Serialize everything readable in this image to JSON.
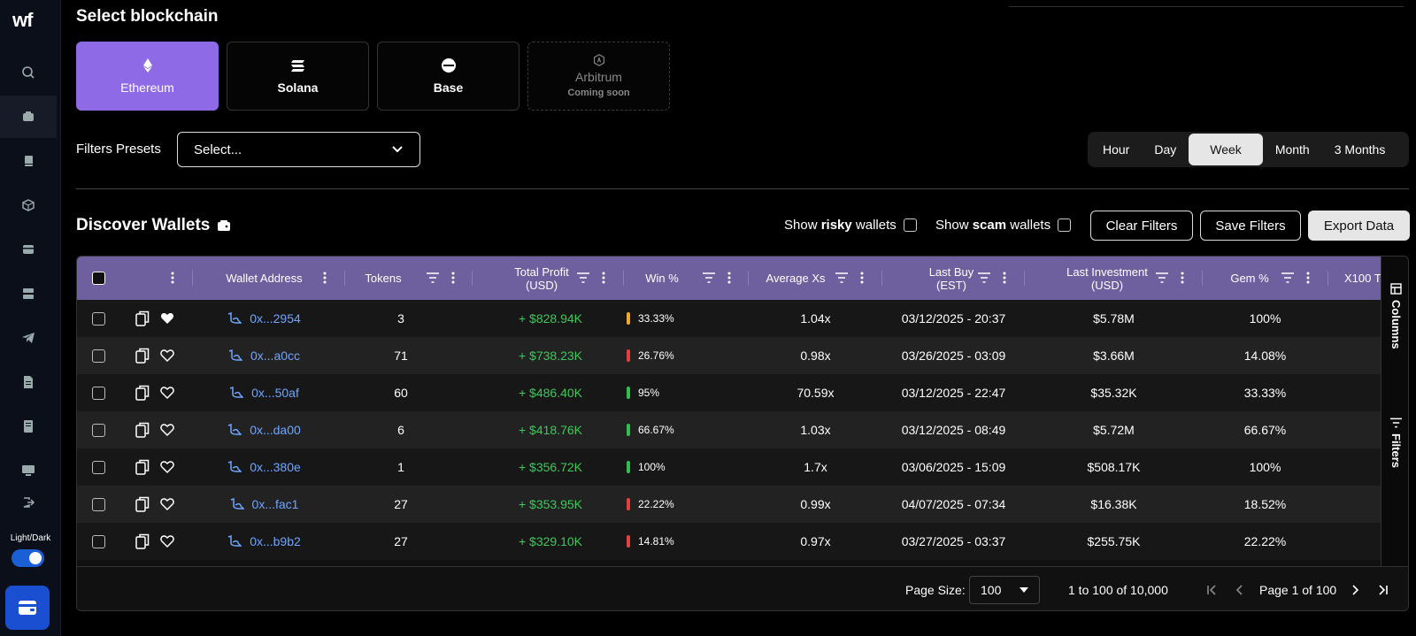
{
  "app": {
    "logo": "wf"
  },
  "sidebar": {
    "items": [
      {
        "icon": "search-icon"
      },
      {
        "icon": "wallet-icon",
        "active": true
      },
      {
        "icon": "book-icon"
      },
      {
        "icon": "cube-icon"
      },
      {
        "icon": "card-icon"
      },
      {
        "icon": "server-icon"
      },
      {
        "icon": "telegram-icon"
      },
      {
        "icon": "document-icon"
      },
      {
        "icon": "receipt-icon"
      },
      {
        "icon": "monitor-icon"
      },
      {
        "icon": "logout-icon"
      }
    ],
    "theme_label": "Light/Dark"
  },
  "blockchain": {
    "title": "Select blockchain",
    "options": [
      {
        "label": "Ethereum",
        "icon": "ethereum-icon",
        "selected": true
      },
      {
        "label": "Solana",
        "icon": "solana-icon"
      },
      {
        "label": "Base",
        "icon": "base-icon"
      },
      {
        "label": "Arbitrum",
        "icon": "arbitrum-icon",
        "sub": "Coming soon",
        "disabled": true
      }
    ]
  },
  "filters": {
    "label": "Filters Presets",
    "placeholder": "Select..."
  },
  "time_range": {
    "tabs": [
      "Hour",
      "Day",
      "Week",
      "Month",
      "3 Months"
    ],
    "active": "Week"
  },
  "discover": {
    "title": "Discover Wallets",
    "risky": {
      "pre": "Show ",
      "bold": "risky",
      "post": " wallets"
    },
    "scam": {
      "pre": "Show ",
      "bold": "scam",
      "post": " wallets"
    },
    "clear": "Clear Filters",
    "save": "Save Filters",
    "export": "Export Data"
  },
  "table": {
    "headers": {
      "wallet": "Wallet Address",
      "tokens": "Tokens",
      "profit_1": "Total Profit",
      "profit_2": "(USD)",
      "win": "Win %",
      "avg": "Average Xs",
      "last_buy_1": "Last Buy",
      "last_buy_2": "(EST)",
      "last_inv_1": "Last Investment",
      "last_inv_2": "(USD)",
      "gem": "Gem %",
      "x100": "X100 T"
    },
    "rows": [
      {
        "addr": "0x...2954",
        "tokens": "3",
        "profit": "+ $828.94K",
        "win": "33.33%",
        "win_color": "#f5a623",
        "avg": "1.04x",
        "last_buy": "03/12/2025 - 20:37",
        "last_inv": "$5.78M",
        "gem": "100%",
        "fav": true
      },
      {
        "addr": "0x...a0cc",
        "tokens": "71",
        "profit": "+ $738.23K",
        "win": "26.76%",
        "win_color": "#e5403a",
        "avg": "0.98x",
        "last_buy": "03/26/2025 - 03:09",
        "last_inv": "$3.66M",
        "gem": "14.08%",
        "fav": false
      },
      {
        "addr": "0x...50af",
        "tokens": "60",
        "profit": "+ $486.40K",
        "win": "95%",
        "win_color": "#2fbf4a",
        "avg": "70.59x",
        "last_buy": "03/12/2025 - 22:47",
        "last_inv": "$35.32K",
        "gem": "33.33%",
        "fav": false
      },
      {
        "addr": "0x...da00",
        "tokens": "6",
        "profit": "+ $418.76K",
        "win": "66.67%",
        "win_color": "#2fbf4a",
        "avg": "1.03x",
        "last_buy": "03/12/2025 - 08:49",
        "last_inv": "$5.72M",
        "gem": "66.67%",
        "fav": false
      },
      {
        "addr": "0x...380e",
        "tokens": "1",
        "profit": "+ $356.72K",
        "win": "100%",
        "win_color": "#2fbf4a",
        "avg": "1.7x",
        "last_buy": "03/06/2025 - 15:09",
        "last_inv": "$508.17K",
        "gem": "100%",
        "fav": false
      },
      {
        "addr": "0x...fac1",
        "tokens": "27",
        "profit": "+ $353.95K",
        "win": "22.22%",
        "win_color": "#e5403a",
        "avg": "0.99x",
        "last_buy": "04/07/2025 - 07:34",
        "last_inv": "$16.38K",
        "gem": "18.52%",
        "fav": false
      },
      {
        "addr": "0x...b9b2",
        "tokens": "27",
        "profit": "+ $329.10K",
        "win": "14.81%",
        "win_color": "#e5403a",
        "avg": "0.97x",
        "last_buy": "03/27/2025 - 03:37",
        "last_inv": "$255.75K",
        "gem": "22.22%",
        "fav": false
      }
    ],
    "side_tabs": {
      "columns": "Columns",
      "filters": "Filters"
    }
  },
  "pager": {
    "page_size_label": "Page Size:",
    "page_size": "100",
    "range": "1 to 100 of 10,000",
    "page": "Page 1 of 100"
  }
}
